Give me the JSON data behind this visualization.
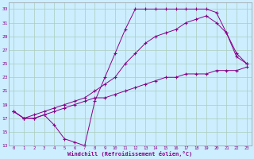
{
  "xlabel": "Windchill (Refroidissement éolien,°C)",
  "bg_color": "#cceeff",
  "grid_color": "#aaccbb",
  "line_color": "#880088",
  "xlim": [
    -0.5,
    23.5
  ],
  "ylim": [
    13,
    34
  ],
  "yticks": [
    13,
    15,
    17,
    19,
    21,
    23,
    25,
    27,
    29,
    31,
    33
  ],
  "xticks": [
    0,
    1,
    2,
    3,
    4,
    5,
    6,
    7,
    8,
    9,
    10,
    11,
    12,
    13,
    14,
    15,
    16,
    17,
    18,
    19,
    20,
    21,
    22,
    23
  ],
  "curve1_x": [
    0,
    1,
    2,
    3,
    4,
    5,
    6,
    7,
    8,
    9,
    10,
    11,
    12,
    13,
    14,
    15,
    16,
    17,
    18,
    19,
    20,
    21,
    22,
    23
  ],
  "curve1_y": [
    18,
    17,
    17,
    17.5,
    16,
    14,
    13.5,
    13,
    19.5,
    23,
    26.5,
    30,
    33,
    33,
    33,
    33,
    33,
    33,
    33,
    33,
    32.5,
    29.5,
    26,
    25
  ],
  "curve2_x": [
    0,
    1,
    2,
    3,
    4,
    5,
    6,
    7,
    8,
    9,
    10,
    11,
    12,
    13,
    14,
    15,
    16,
    17,
    18,
    19,
    20,
    21,
    22,
    23
  ],
  "curve2_y": [
    18,
    17,
    17,
    17.5,
    18,
    18.5,
    19,
    19.5,
    20,
    20,
    20.5,
    21,
    21.5,
    22,
    22.5,
    23,
    23,
    23.5,
    23.5,
    23.5,
    24,
    24,
    24,
    24.5
  ],
  "curve3_x": [
    0,
    1,
    2,
    3,
    4,
    5,
    6,
    7,
    8,
    9,
    10,
    11,
    12,
    13,
    14,
    15,
    16,
    17,
    18,
    19,
    20,
    21,
    22,
    23
  ],
  "curve3_y": [
    18,
    17,
    17.5,
    18,
    18.5,
    19,
    19.5,
    20,
    21,
    22,
    23,
    25,
    26.5,
    28,
    29,
    29.5,
    30,
    31,
    31.5,
    32,
    31,
    29.5,
    26.5,
    25
  ]
}
